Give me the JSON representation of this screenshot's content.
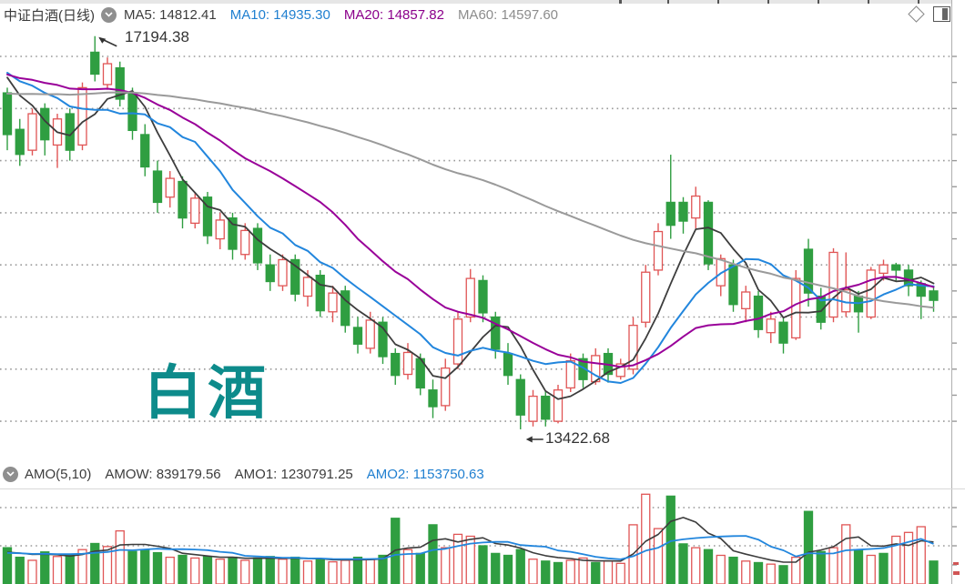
{
  "header": {
    "symbol": "中证白酒(日线)",
    "indicators": [
      {
        "label": "MA5: 14812.41",
        "color": "#3c3c3c"
      },
      {
        "label": "MA10: 14935.30",
        "color": "#1f7fd0"
      },
      {
        "label": "MA20: 14857.82",
        "color": "#8B008B"
      },
      {
        "label": "MA60: 14597.60",
        "color": "#8c8c8c"
      }
    ]
  },
  "sub_header": {
    "name": "AMO(5,10)",
    "indicators": [
      {
        "label": "AMOW: 839179.56",
        "color": "#3c3c3c"
      },
      {
        "label": "AMO1: 1230791.25",
        "color": "#3c3c3c"
      },
      {
        "label": "AMO2: 1153750.63",
        "color": "#1f7fd0"
      }
    ]
  },
  "watermark": "白酒",
  "annotations": {
    "high": "17194.38",
    "low": "13422.68"
  },
  "colors": {
    "up": "#e05555",
    "down": "#2f9e41",
    "ma5": "#3d3d3d",
    "ma10": "#2286dd",
    "ma20": "#990099",
    "ma60": "#9a9a9a",
    "grid": "#999999",
    "border": "#b0b0b0",
    "text": "#3a3a3a",
    "watermark": "#0d8b8b"
  },
  "chart_data": {
    "type": "candlestick+volume",
    "title": "中证白酒(日线)",
    "legend": [
      "MA5",
      "MA10",
      "MA20",
      "MA60",
      "AMO1",
      "AMO2"
    ],
    "price_axis": {
      "gridlines": [
        17000,
        16500,
        16000,
        15500,
        15000,
        14500,
        14000,
        13500
      ],
      "ylim": [
        13250,
        17300
      ]
    },
    "volume_axis": {
      "gridlines": [
        1000000,
        2000000
      ],
      "ylim": [
        0,
        2550000
      ]
    },
    "high_label": {
      "index": 7,
      "value": 17194.38
    },
    "low_label": {
      "index": 41,
      "value": 13422.68
    },
    "ma_config": [
      {
        "name": "MA5",
        "window": 5,
        "color": "#3d3d3d",
        "width": 1.8
      },
      {
        "name": "MA10",
        "window": 10,
        "color": "#2286dd",
        "width": 2
      },
      {
        "name": "MA20",
        "window": 20,
        "color": "#990099",
        "width": 2
      },
      {
        "name": "MA60",
        "window": 60,
        "color": "#9a9a9a",
        "width": 2
      }
    ],
    "amo_config": [
      {
        "name": "AMO1",
        "window": 5,
        "color": "#3d3d3d",
        "width": 1.6
      },
      {
        "name": "AMO2",
        "window": 10,
        "color": "#2286dd",
        "width": 1.8
      }
    ],
    "candles": [
      [
        16650,
        16700,
        16100,
        16250
      ],
      [
        16300,
        16400,
        15950,
        16060
      ],
      [
        16100,
        16500,
        16050,
        16450
      ],
      [
        16500,
        16550,
        16050,
        16200
      ],
      [
        16150,
        16450,
        15930,
        16400
      ],
      [
        16450,
        16500,
        16000,
        16100
      ],
      [
        16150,
        16750,
        16100,
        16700
      ],
      [
        17040,
        17194.38,
        16760,
        16830
      ],
      [
        16730,
        16990,
        16680,
        16930
      ],
      [
        16890,
        16950,
        16520,
        16590
      ],
      [
        16650,
        16700,
        16200,
        16290
      ],
      [
        16250,
        16350,
        15850,
        15940
      ],
      [
        15900,
        16000,
        15500,
        15600
      ],
      [
        15650,
        15900,
        15550,
        15830
      ],
      [
        15800,
        15850,
        15350,
        15450
      ],
      [
        15400,
        15700,
        15350,
        15640
      ],
      [
        15650,
        15700,
        15200,
        15280
      ],
      [
        15250,
        15500,
        15150,
        15430
      ],
      [
        15450,
        15500,
        15050,
        15150
      ],
      [
        15100,
        15400,
        15050,
        15330
      ],
      [
        15350,
        15400,
        14950,
        15020
      ],
      [
        15000,
        15100,
        14750,
        14840
      ],
      [
        14800,
        15100,
        14750,
        15050
      ],
      [
        15050,
        15100,
        14650,
        14720
      ],
      [
        14700,
        14950,
        14600,
        14880
      ],
      [
        14900,
        14950,
        14500,
        14560
      ],
      [
        14550,
        14800,
        14450,
        14730
      ],
      [
        14750,
        14800,
        14350,
        14420
      ],
      [
        14400,
        14500,
        14150,
        14240
      ],
      [
        14200,
        14550,
        14150,
        14470
      ],
      [
        14450,
        14500,
        14050,
        14120
      ],
      [
        14150,
        14200,
        13850,
        13940
      ],
      [
        13950,
        14250,
        13900,
        14160
      ],
      [
        14100,
        14150,
        13750,
        13820
      ],
      [
        13800,
        13900,
        13530,
        13640
      ],
      [
        13650,
        14100,
        13600,
        14010
      ],
      [
        14050,
        14550,
        14000,
        14480
      ],
      [
        14500,
        14960,
        14450,
        14870
      ],
      [
        14850,
        14900,
        14450,
        14540
      ],
      [
        14500,
        14550,
        14100,
        14190
      ],
      [
        14150,
        14250,
        13850,
        13940
      ],
      [
        13900,
        13950,
        13422.68,
        13560
      ],
      [
        13500,
        13800,
        13450,
        13740
      ],
      [
        13740,
        13790,
        13450,
        13520
      ],
      [
        13500,
        13850,
        13480,
        13800
      ],
      [
        13820,
        14150,
        13780,
        14080
      ],
      [
        14100,
        14150,
        13820,
        13900
      ],
      [
        13880,
        14200,
        13850,
        14130
      ],
      [
        14150,
        14200,
        13870,
        13950
      ],
      [
        13930,
        14100,
        13900,
        14050
      ],
      [
        14000,
        14500,
        13950,
        14420
      ],
      [
        14450,
        15000,
        14400,
        14930
      ],
      [
        14950,
        15400,
        14900,
        15320
      ],
      [
        15600,
        16057,
        15250,
        15380
      ],
      [
        15600,
        15650,
        15300,
        15420
      ],
      [
        15450,
        15750,
        15350,
        15660
      ],
      [
        15600,
        15620,
        14950,
        15010
      ],
      [
        14800,
        15100,
        14700,
        15060
      ],
      [
        15000,
        15050,
        14550,
        14620
      ],
      [
        14580,
        14800,
        14450,
        14740
      ],
      [
        14700,
        14750,
        14300,
        14380
      ],
      [
        14350,
        14550,
        14250,
        14480
      ],
      [
        14450,
        14500,
        14150,
        14250
      ],
      [
        14300,
        14950,
        14280,
        14870
      ],
      [
        15150,
        15250,
        14600,
        14730
      ],
      [
        14700,
        14780,
        14380,
        14450
      ],
      [
        14500,
        15160,
        14450,
        15120
      ],
      [
        14550,
        15120,
        14500,
        14760
      ],
      [
        14700,
        14750,
        14350,
        14550
      ],
      [
        14500,
        14980,
        14480,
        14950
      ],
      [
        14920,
        15050,
        14850,
        15000
      ],
      [
        15000,
        15020,
        14850,
        14950
      ],
      [
        14950,
        15000,
        14700,
        14800
      ],
      [
        14820,
        14850,
        14480,
        14700
      ],
      [
        14750,
        14780,
        14550,
        14660
      ]
    ],
    "volumes": [
      [
        950000,
        "g"
      ],
      [
        700000,
        "g"
      ],
      [
        620000,
        "r"
      ],
      [
        840000,
        "g"
      ],
      [
        720000,
        "r"
      ],
      [
        780000,
        "g"
      ],
      [
        900000,
        "r"
      ],
      [
        1060000,
        "g"
      ],
      [
        980000,
        "r"
      ],
      [
        1390000,
        "r"
      ],
      [
        850000,
        "g"
      ],
      [
        900000,
        "g"
      ],
      [
        820000,
        "g"
      ],
      [
        700000,
        "r"
      ],
      [
        750000,
        "g"
      ],
      [
        680000,
        "r"
      ],
      [
        720000,
        "g"
      ],
      [
        650000,
        "r"
      ],
      [
        700000,
        "g"
      ],
      [
        620000,
        "r"
      ],
      [
        680000,
        "g"
      ],
      [
        720000,
        "g"
      ],
      [
        650000,
        "r"
      ],
      [
        700000,
        "g"
      ],
      [
        600000,
        "r"
      ],
      [
        650000,
        "g"
      ],
      [
        580000,
        "r"
      ],
      [
        620000,
        "r"
      ],
      [
        700000,
        "g"
      ],
      [
        640000,
        "r"
      ],
      [
        750000,
        "g"
      ],
      [
        1720000,
        "g"
      ],
      [
        900000,
        "r"
      ],
      [
        800000,
        "g"
      ],
      [
        1550000,
        "g"
      ],
      [
        950000,
        "r"
      ],
      [
        1300000,
        "r"
      ],
      [
        1250000,
        "r"
      ],
      [
        1000000,
        "g"
      ],
      [
        800000,
        "g"
      ],
      [
        750000,
        "g"
      ],
      [
        900000,
        "g"
      ],
      [
        650000,
        "r"
      ],
      [
        600000,
        "g"
      ],
      [
        560000,
        "g"
      ],
      [
        620000,
        "r"
      ],
      [
        680000,
        "r"
      ],
      [
        560000,
        "g"
      ],
      [
        600000,
        "r"
      ],
      [
        540000,
        "r"
      ],
      [
        1550000,
        "r"
      ],
      [
        2350000,
        "r"
      ],
      [
        1450000,
        "r"
      ],
      [
        2300000,
        "g"
      ],
      [
        1050000,
        "g"
      ],
      [
        950000,
        "r"
      ],
      [
        900000,
        "g"
      ],
      [
        750000,
        "r"
      ],
      [
        700000,
        "g"
      ],
      [
        600000,
        "r"
      ],
      [
        560000,
        "g"
      ],
      [
        520000,
        "r"
      ],
      [
        480000,
        "g"
      ],
      [
        700000,
        "r"
      ],
      [
        1900000,
        "g"
      ],
      [
        850000,
        "g"
      ],
      [
        950000,
        "r"
      ],
      [
        1550000,
        "r"
      ],
      [
        900000,
        "g"
      ],
      [
        750000,
        "r"
      ],
      [
        800000,
        "g"
      ],
      [
        1250000,
        "r"
      ],
      [
        1350000,
        "r"
      ],
      [
        1500000,
        "r"
      ],
      [
        600000,
        "g"
      ]
    ]
  }
}
